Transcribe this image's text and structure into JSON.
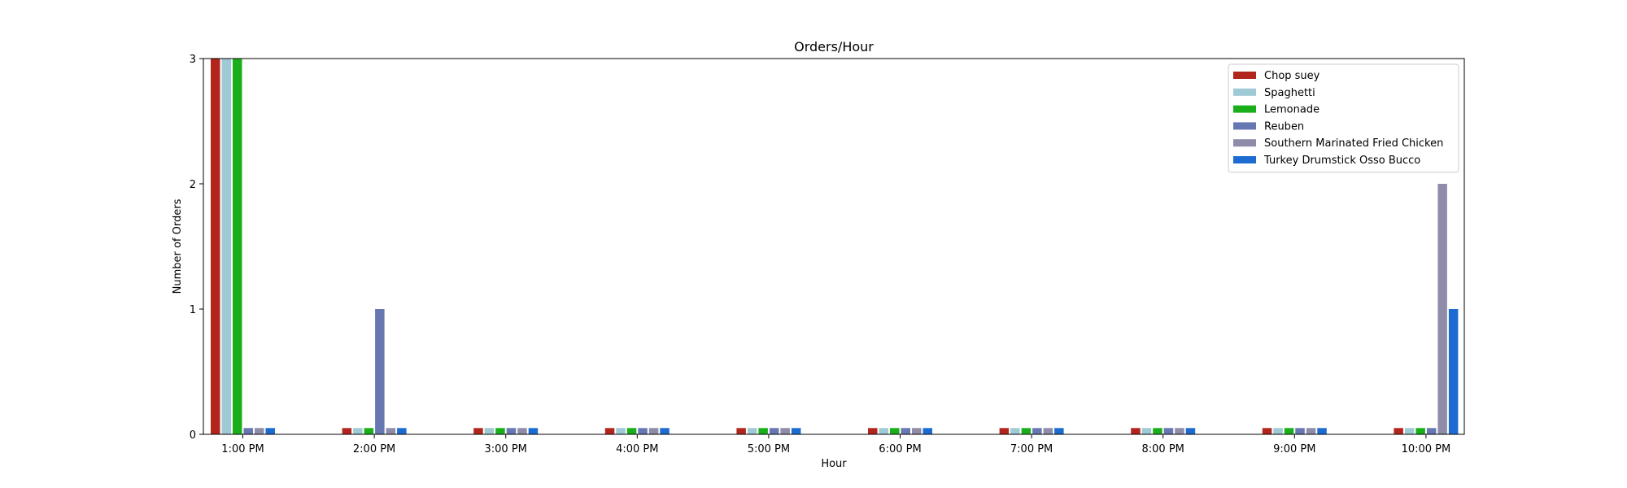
{
  "chart_data": {
    "type": "bar",
    "title": "Orders/Hour",
    "xlabel": "Hour",
    "ylabel": "Number of Orders",
    "ylim": [
      0,
      3
    ],
    "yticks": [
      0,
      1,
      2,
      3
    ],
    "grid": false,
    "legend_position": "top-right",
    "zero_marker_value": 0.05,
    "categories": [
      "1:00 PM",
      "2:00 PM",
      "3:00 PM",
      "4:00 PM",
      "5:00 PM",
      "6:00 PM",
      "7:00 PM",
      "8:00 PM",
      "9:00 PM",
      "10:00 PM"
    ],
    "series": [
      {
        "name": "Chop suey",
        "color": "#b2251c",
        "values": [
          3,
          0,
          0,
          0,
          0,
          0,
          0,
          0,
          0,
          0
        ]
      },
      {
        "name": "Spaghetti",
        "color": "#9ecad6",
        "values": [
          3,
          0,
          0,
          0,
          0,
          0,
          0,
          0,
          0,
          0
        ]
      },
      {
        "name": "Lemonade",
        "color": "#1aae1a",
        "values": [
          3,
          0,
          0,
          0,
          0,
          0,
          0,
          0,
          0,
          0
        ]
      },
      {
        "name": "Reuben",
        "color": "#6677b2",
        "values": [
          0,
          1,
          0,
          0,
          0,
          0,
          0,
          0,
          0,
          0
        ]
      },
      {
        "name": "Southern Marinated Fried Chicken",
        "color": "#8e8ca8",
        "values": [
          0,
          0,
          0,
          0,
          0,
          0,
          0,
          0,
          0,
          2
        ]
      },
      {
        "name": "Turkey Drumstick Osso Bucco",
        "color": "#1c6bd0",
        "values": [
          0,
          0,
          0,
          0,
          0,
          0,
          0,
          0,
          0,
          1
        ]
      }
    ]
  }
}
